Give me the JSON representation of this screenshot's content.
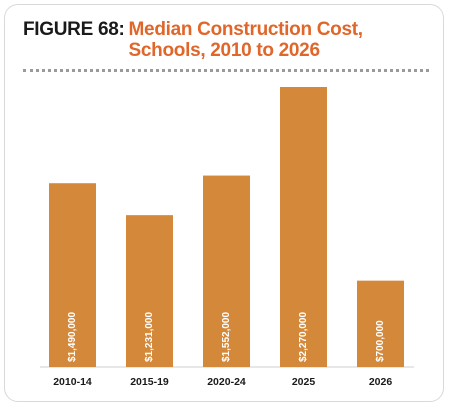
{
  "chart_data": {
    "type": "bar",
    "figure_label": "FIGURE 68:",
    "title": "Median Construction Cost, Schools, 2010 to 2026",
    "categories": [
      "2010-14",
      "2015-19",
      "2020-24",
      "2025",
      "2026"
    ],
    "values": [
      1490000,
      1231000,
      1552000,
      2270000,
      700000
    ],
    "value_labels": [
      "$1,490,000",
      "$1,231,000",
      "$1,552,000",
      "$2,270,000",
      "$700,000"
    ],
    "color": "#d4883a"
  }
}
